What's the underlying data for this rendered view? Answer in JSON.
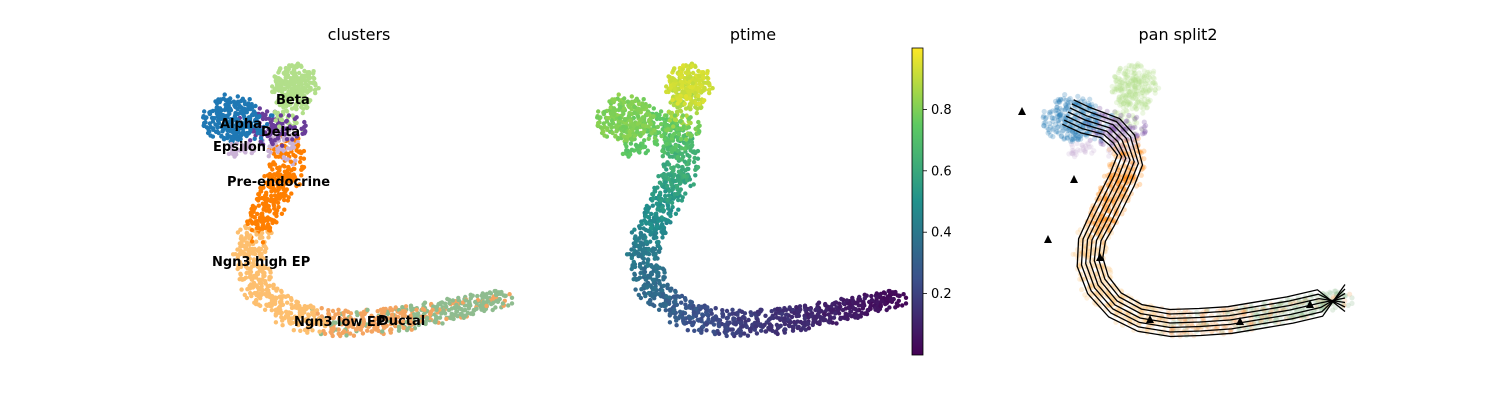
{
  "chart_data": [
    {
      "type": "scatter",
      "title": "clusters",
      "legend": "on data",
      "clusters": [
        {
          "name": "Ductal",
          "color": "#8fbc8f"
        },
        {
          "name": "Ngn3 low EP",
          "color": "#f4a460"
        },
        {
          "name": "Ngn3 high EP",
          "color": "#fdbf6f"
        },
        {
          "name": "Pre-endocrine",
          "color": "#ff7f00"
        },
        {
          "name": "Beta",
          "color": "#b2df8a"
        },
        {
          "name": "Alpha",
          "color": "#1f78b4"
        },
        {
          "name": "Delta",
          "color": "#6a3d9a"
        },
        {
          "name": "Epsilon",
          "color": "#cab2d6"
        }
      ]
    },
    {
      "type": "scatter",
      "title": "ptime",
      "colorbar": {
        "ticks": [
          "0.2",
          "0.4",
          "0.6",
          "0.8"
        ],
        "range": [
          0,
          1
        ],
        "colormap": "viridis"
      }
    },
    {
      "type": "scatter",
      "title": "pan split2",
      "overlay": "streamlines"
    }
  ]
}
